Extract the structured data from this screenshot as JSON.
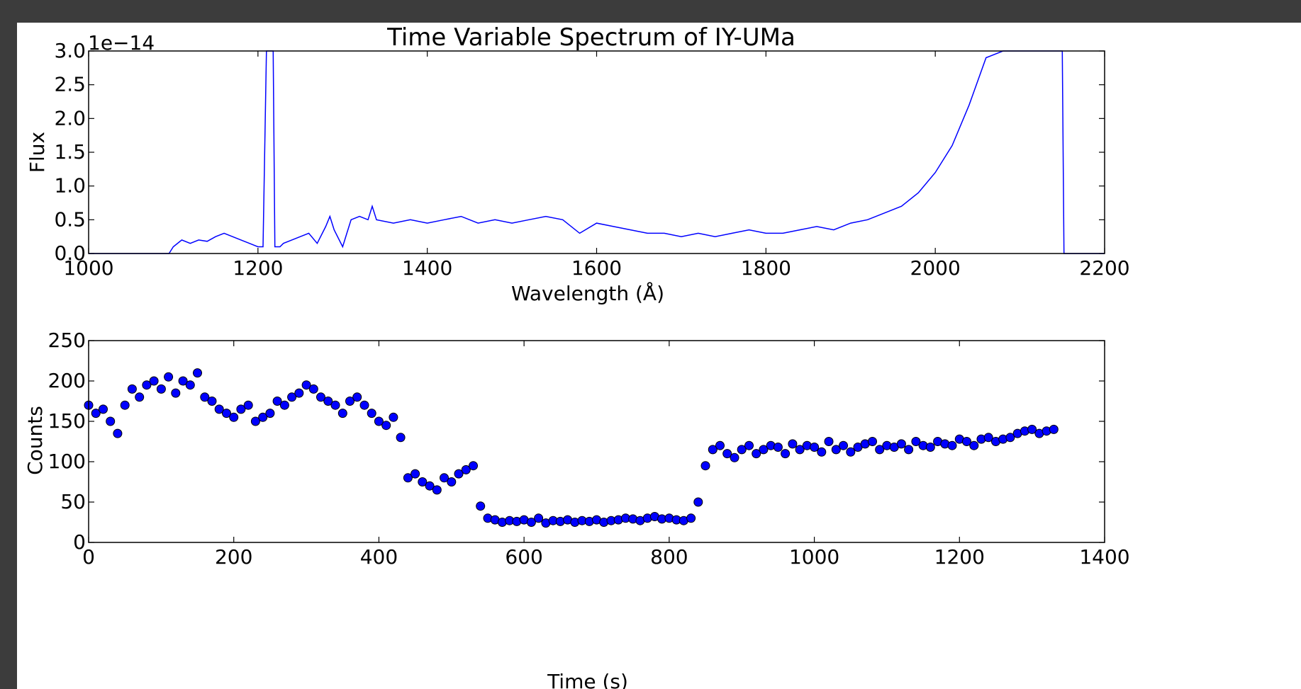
{
  "chart_data": [
    {
      "type": "line",
      "title": "Time Variable Spectrum of IY-UMa",
      "xlabel": "Wavelength (Å)",
      "ylabel": "Flux",
      "offset_text": "1e−14",
      "xlim": [
        1000,
        2200
      ],
      "ylim": [
        0.0,
        3.0
      ],
      "xticks": [
        1000,
        1200,
        1400,
        1600,
        1800,
        2000,
        2200
      ],
      "yticks": [
        0.0,
        0.5,
        1.0,
        1.5,
        2.0,
        2.5,
        3.0
      ],
      "xtick_labels": [
        "1000",
        "1200",
        "1400",
        "1600",
        "1800",
        "2000",
        "2200"
      ],
      "ytick_labels": [
        "0.0",
        "0.5",
        "1.0",
        "1.5",
        "2.0",
        "2.5",
        "3.0"
      ],
      "grid": false,
      "color": "#0000ff",
      "series": [
        {
          "x": [
            1000,
            1095,
            1100,
            1110,
            1120,
            1130,
            1140,
            1150,
            1160,
            1170,
            1180,
            1190,
            1200,
            1206,
            1210,
            1212,
            1218,
            1220,
            1226,
            1230,
            1240,
            1250,
            1260,
            1270,
            1280,
            1285,
            1290,
            1300,
            1305,
            1310,
            1320,
            1330,
            1335,
            1340,
            1360,
            1380,
            1400,
            1420,
            1440,
            1460,
            1480,
            1500,
            1520,
            1540,
            1560,
            1580,
            1600,
            1620,
            1640,
            1660,
            1680,
            1700,
            1720,
            1740,
            1760,
            1780,
            1800,
            1820,
            1840,
            1860,
            1880,
            1900,
            1920,
            1940,
            1960,
            1980,
            2000,
            2020,
            2040,
            2060,
            2080,
            2100,
            2120,
            2140,
            2150,
            2152,
            2200
          ],
          "y": [
            0.0,
            0.0,
            0.1,
            0.2,
            0.15,
            0.2,
            0.18,
            0.25,
            0.3,
            0.25,
            0.2,
            0.15,
            0.1,
            0.1,
            3.0,
            3.0,
            3.0,
            0.1,
            0.1,
            0.15,
            0.2,
            0.25,
            0.3,
            0.15,
            0.4,
            0.55,
            0.35,
            0.1,
            0.3,
            0.5,
            0.55,
            0.5,
            0.7,
            0.5,
            0.45,
            0.5,
            0.45,
            0.5,
            0.55,
            0.45,
            0.5,
            0.45,
            0.5,
            0.55,
            0.5,
            0.3,
            0.45,
            0.4,
            0.35,
            0.3,
            0.3,
            0.25,
            0.3,
            0.25,
            0.3,
            0.35,
            0.3,
            0.3,
            0.35,
            0.4,
            0.35,
            0.45,
            0.5,
            0.6,
            0.7,
            0.9,
            1.2,
            1.6,
            2.2,
            2.9,
            3.0,
            3.0,
            3.0,
            3.0,
            3.0,
            0.0,
            0.0
          ]
        }
      ]
    },
    {
      "type": "scatter",
      "title": "",
      "xlabel": "Time (s)",
      "ylabel": "Counts",
      "xlim": [
        0,
        1400
      ],
      "ylim": [
        0,
        250
      ],
      "xticks": [
        0,
        200,
        400,
        600,
        800,
        1000,
        1200,
        1400
      ],
      "yticks": [
        0,
        50,
        100,
        150,
        200,
        250
      ],
      "xtick_labels": [
        "0",
        "200",
        "400",
        "600",
        "800",
        "1000",
        "1200",
        "1400"
      ],
      "ytick_labels": [
        "0",
        "50",
        "100",
        "150",
        "200",
        "250"
      ],
      "grid": false,
      "color": "#0000ff",
      "series": [
        {
          "x": [
            0,
            10,
            20,
            30,
            40,
            50,
            60,
            70,
            80,
            90,
            100,
            110,
            120,
            130,
            140,
            150,
            160,
            170,
            180,
            190,
            200,
            210,
            220,
            230,
            240,
            250,
            260,
            270,
            280,
            290,
            300,
            310,
            320,
            330,
            340,
            350,
            360,
            370,
            380,
            390,
            400,
            410,
            420,
            430,
            440,
            450,
            460,
            470,
            480,
            490,
            500,
            510,
            520,
            530,
            540,
            550,
            560,
            570,
            580,
            590,
            600,
            610,
            620,
            630,
            640,
            650,
            660,
            670,
            680,
            690,
            700,
            710,
            720,
            730,
            740,
            750,
            760,
            770,
            780,
            790,
            800,
            810,
            820,
            830,
            840,
            850,
            860,
            870,
            880,
            890,
            900,
            910,
            920,
            930,
            940,
            950,
            960,
            970,
            980,
            990,
            1000,
            1010,
            1020,
            1030,
            1040,
            1050,
            1060,
            1070,
            1080,
            1090,
            1100,
            1110,
            1120,
            1130,
            1140,
            1150,
            1160,
            1170,
            1180,
            1190,
            1200,
            1210,
            1220,
            1230,
            1240,
            1250,
            1260,
            1270,
            1280,
            1290,
            1300,
            1310,
            1320,
            1330
          ],
          "y": [
            170,
            160,
            165,
            150,
            135,
            170,
            190,
            180,
            195,
            200,
            190,
            205,
            185,
            200,
            195,
            210,
            180,
            175,
            165,
            160,
            155,
            165,
            170,
            150,
            155,
            160,
            175,
            170,
            180,
            185,
            195,
            190,
            180,
            175,
            170,
            160,
            175,
            180,
            170,
            160,
            150,
            145,
            155,
            130,
            80,
            85,
            75,
            70,
            65,
            80,
            75,
            85,
            90,
            95,
            45,
            30,
            28,
            25,
            27,
            26,
            28,
            25,
            30,
            24,
            27,
            26,
            28,
            25,
            27,
            26,
            28,
            25,
            27,
            28,
            30,
            29,
            27,
            30,
            32,
            29,
            30,
            28,
            27,
            30,
            50,
            95,
            115,
            120,
            110,
            105,
            115,
            120,
            110,
            115,
            120,
            118,
            110,
            122,
            115,
            120,
            118,
            112,
            125,
            115,
            120,
            112,
            118,
            122,
            125,
            115,
            120,
            118,
            122,
            115,
            125,
            120,
            118,
            125,
            122,
            120,
            128,
            125,
            120,
            128,
            130,
            125,
            128,
            130,
            135,
            138,
            140,
            135,
            138,
            140
          ]
        }
      ]
    }
  ]
}
